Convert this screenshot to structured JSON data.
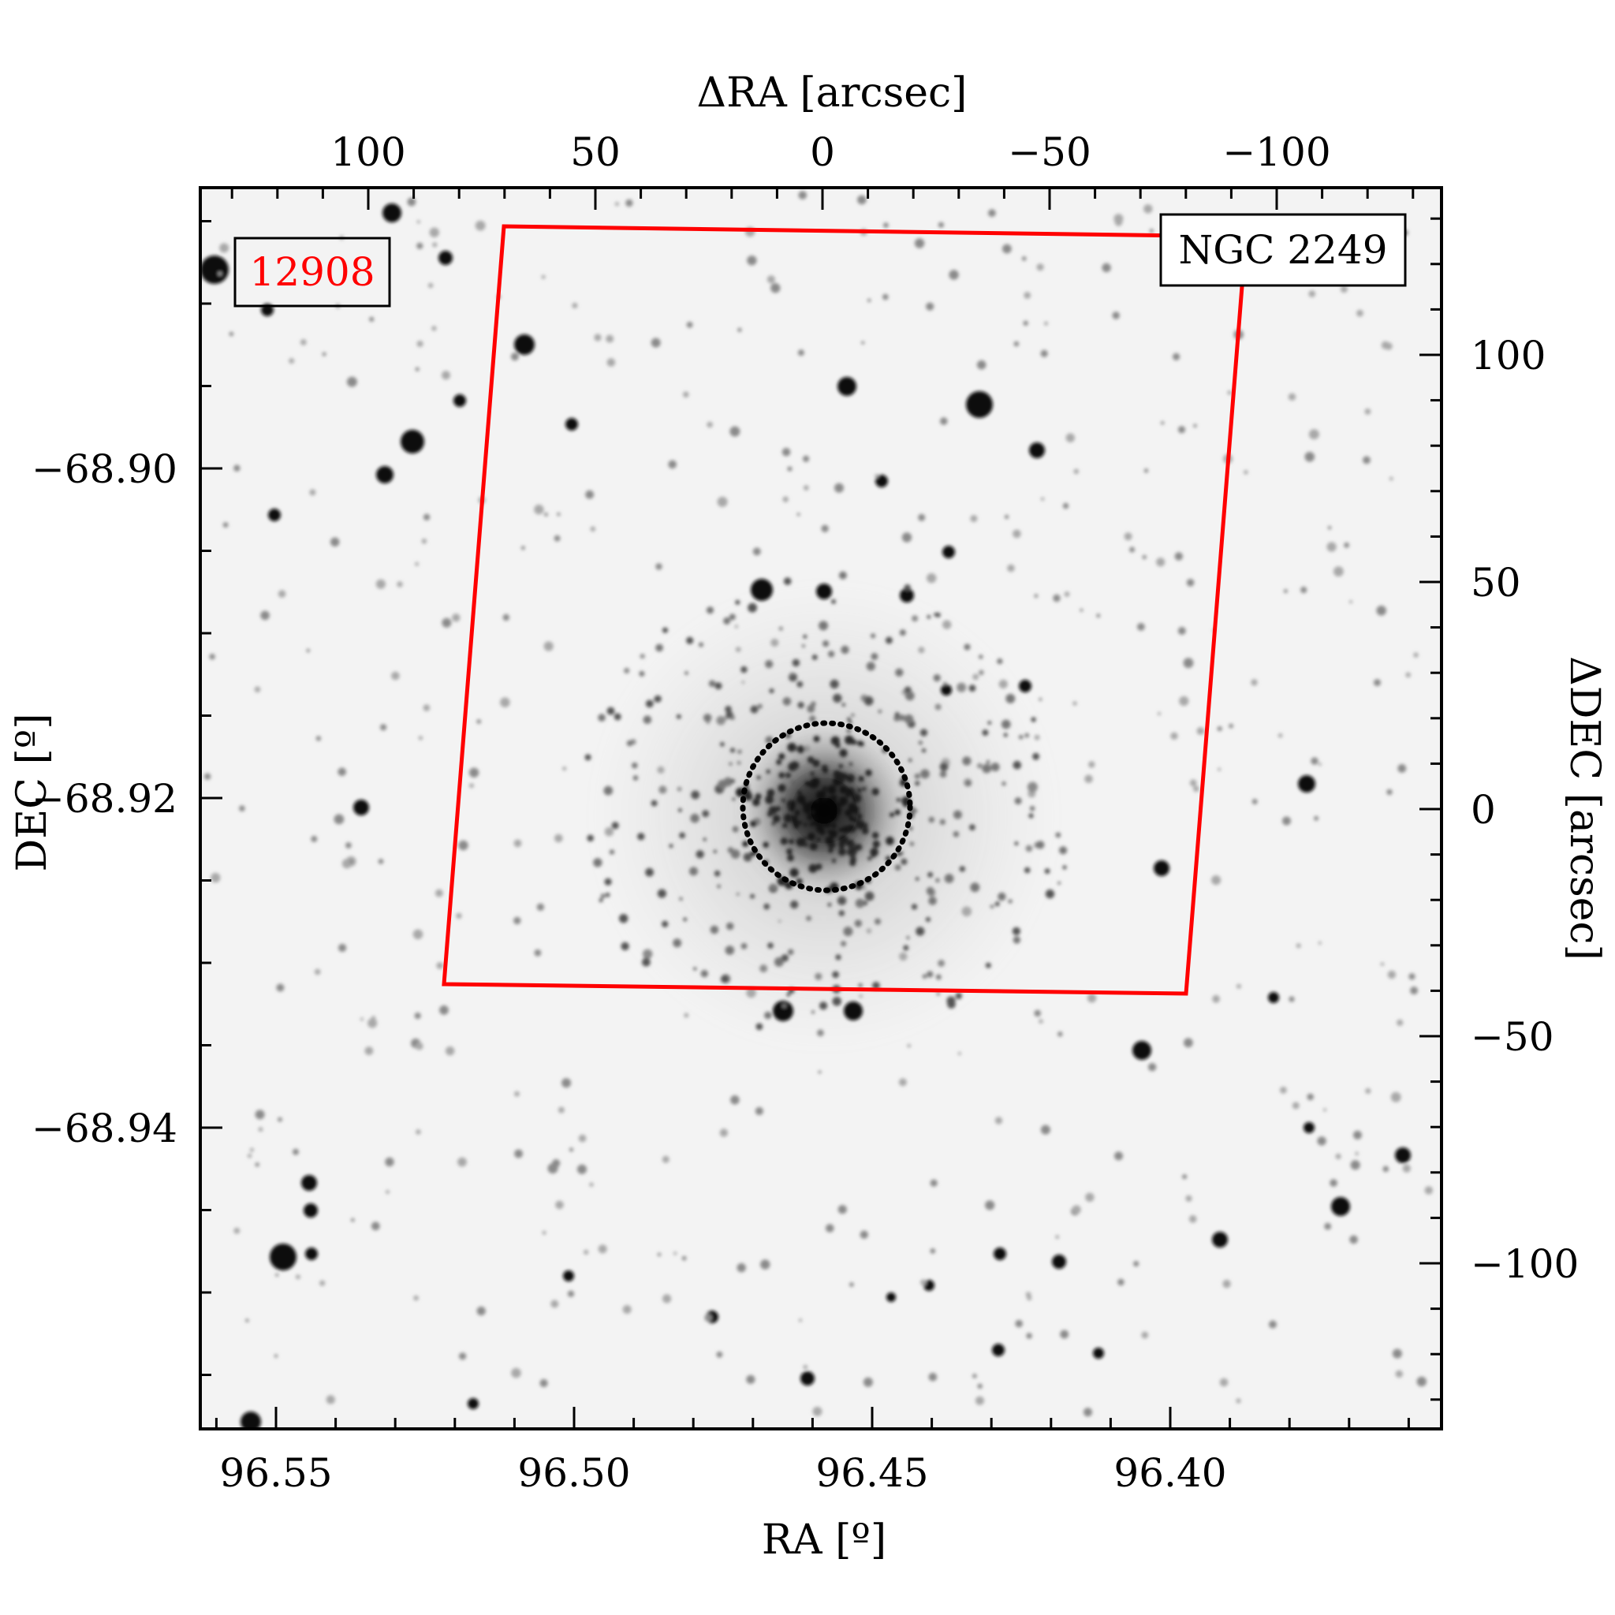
{
  "figure": {
    "top_axis": {
      "title": "ΔRA [arcsec]",
      "ticks": [
        {
          "value": 100,
          "label": "100"
        },
        {
          "value": 50,
          "label": "50"
        },
        {
          "value": 0,
          "label": "0"
        },
        {
          "value": -50,
          "label": "−50"
        },
        {
          "value": -100,
          "label": "−100"
        }
      ]
    },
    "right_axis": {
      "title": "ΔDEC [arcsec]",
      "ticks": [
        {
          "value": 100,
          "label": "100"
        },
        {
          "value": 50,
          "label": "50"
        },
        {
          "value": 0,
          "label": "0"
        },
        {
          "value": -50,
          "label": "−50"
        },
        {
          "value": -100,
          "label": "−100"
        }
      ]
    },
    "bottom_axis": {
      "title": "RA [º]",
      "ticks": [
        {
          "value": 96.55,
          "label": "96.55"
        },
        {
          "value": 96.5,
          "label": "96.50"
        },
        {
          "value": 96.45,
          "label": "96.45"
        },
        {
          "value": 96.4,
          "label": "96.40"
        }
      ]
    },
    "left_axis": {
      "title": "DEC [º]",
      "ticks": [
        {
          "value": -68.9,
          "label": "−68.90"
        },
        {
          "value": -68.92,
          "label": "−68.92"
        },
        {
          "value": -68.94,
          "label": "−68.94"
        }
      ]
    },
    "field_id": "12908",
    "cluster_name": "NGC 2249",
    "colors": {
      "footprint": "#ff0000",
      "field_id_text": "#ff0000",
      "frame": "#000000",
      "sky_background": "#f3f3f3"
    }
  }
}
